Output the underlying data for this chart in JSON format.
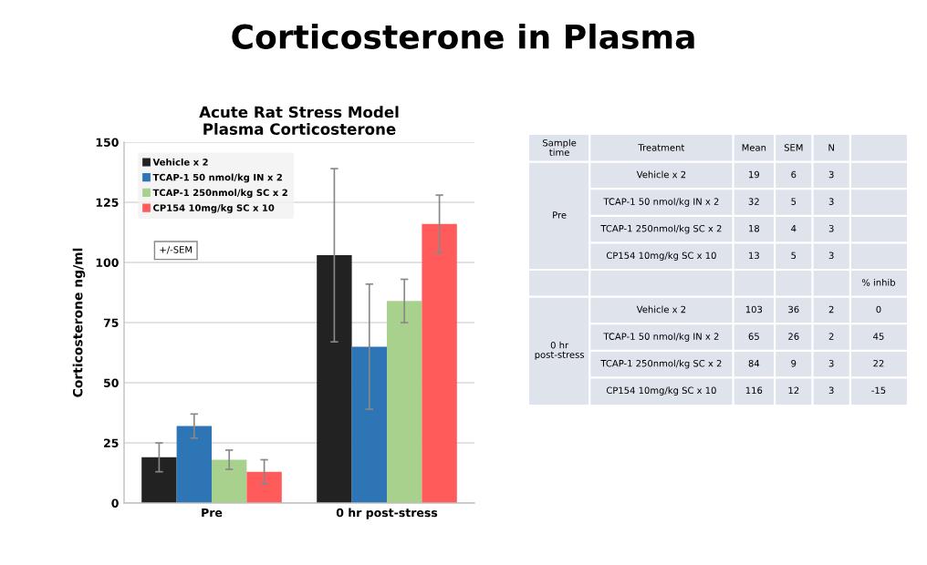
{
  "chart_data": [
    {
      "type": "bar",
      "title": "Corticosterone in Plasma",
      "subtitle": "Acute Rat Stress Model\nPlasma Corticosterone",
      "ylabel": "Corticosterone ng/ml",
      "categories": [
        "Pre",
        "0 hr post-stress"
      ],
      "series": [
        {
          "name": "Vehicle x 2",
          "color": "#222222",
          "values": [
            19,
            103
          ],
          "errors": [
            6,
            36
          ]
        },
        {
          "name": "TCAP-1 50 nmol/kg IN x 2",
          "color": "#2e75b6",
          "values": [
            32,
            65
          ],
          "errors": [
            5,
            26
          ]
        },
        {
          "name": "TCAP-1 250nmol/kg SC x 2",
          "color": "#a9d18e",
          "values": [
            18,
            84
          ],
          "errors": [
            4,
            9
          ]
        },
        {
          "name": "CP154 10mg/kg SC x 10",
          "color": "#ff5b5b",
          "values": [
            13,
            116
          ],
          "errors": [
            5,
            12
          ]
        }
      ],
      "ylim": [
        0,
        150
      ],
      "yticks": [
        0,
        25,
        50,
        75,
        100,
        125,
        150
      ],
      "grid": "y",
      "legend": "top left",
      "annotations": [
        "+/-SEM"
      ]
    },
    {
      "type": "other",
      "categories": [
        "Sample\ntime",
        "Treatment",
        "Mean",
        "SEM",
        "N",
        null
      ],
      "cell_labels": [
        [
          "Pre",
          "Vehicle x 2",
          "19",
          "6",
          "3",
          null
        ],
        [
          null,
          "TCAP-1 50 nmol/kg IN x 2",
          "32",
          "5",
          "3",
          null
        ],
        [
          null,
          "TCAP-1 250nmol/kg SC x 2",
          "18",
          "4",
          "3",
          null
        ],
        [
          null,
          "CP154 10mg/kg SC x 10",
          "13",
          "5",
          "3",
          null
        ],
        [
          null,
          null,
          null,
          null,
          null,
          "% inhib"
        ],
        [
          "0 hr\npost-stress",
          "Vehicle x 2",
          "103",
          "36",
          "2",
          "0"
        ],
        [
          null,
          "TCAP-1 50 nmol/kg IN x 2",
          "65",
          "26",
          "2",
          "45"
        ],
        [
          null,
          "TCAP-1 250nmol/kg SC x 2",
          "84",
          "9",
          "3",
          "22"
        ],
        [
          null,
          "CP154 10mg/kg SC x 10",
          "116",
          "12",
          "3",
          "-15"
        ]
      ]
    }
  ]
}
